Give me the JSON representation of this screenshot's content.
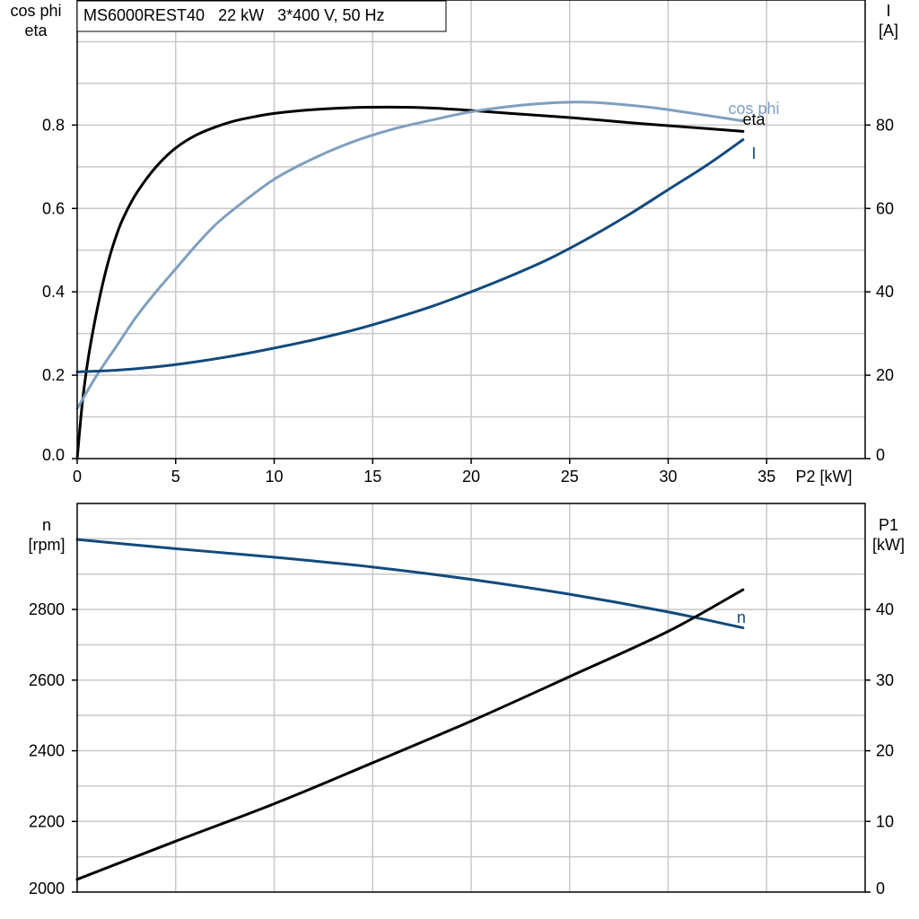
{
  "chart_data": [
    {
      "type": "line",
      "legend_text": "MS6000REST40   22 kW   3*400 V, 50 Hz",
      "xlabel": "P2 [kW]",
      "ylabel_left": [
        "cos phi",
        "eta"
      ],
      "ylabel_right": [
        "I",
        "[A]"
      ],
      "xlim": [
        0,
        40
      ],
      "ylim_left": [
        0,
        1.1
      ],
      "ylim_right": [
        0,
        110
      ],
      "xticks": [
        0,
        5,
        10,
        15,
        20,
        25,
        30,
        35
      ],
      "yticks_left": [
        "0.0",
        "0.2",
        "0.4",
        "0.6",
        "0.8"
      ],
      "yticks_right": [
        "0",
        "20",
        "40",
        "60",
        "80"
      ],
      "grid": true,
      "series": [
        {
          "name": "eta",
          "axis": "left",
          "color": "#000000",
          "x": [
            0,
            0.3,
            0.7,
            1.4,
            2.1,
            2.8,
            3.5,
            4.2,
            5,
            6,
            7,
            8,
            9,
            10,
            12,
            14,
            16,
            18,
            20,
            22,
            25,
            28,
            31,
            33.8
          ],
          "y": [
            0.0,
            0.15,
            0.28,
            0.44,
            0.55,
            0.62,
            0.67,
            0.71,
            0.745,
            0.775,
            0.795,
            0.81,
            0.82,
            0.828,
            0.837,
            0.842,
            0.843,
            0.841,
            0.835,
            0.828,
            0.818,
            0.806,
            0.795,
            0.785
          ]
        },
        {
          "name": "cos phi",
          "axis": "left",
          "color": "#7e9fbf",
          "x": [
            0,
            1,
            2,
            3,
            4,
            5,
            6,
            7,
            8,
            10,
            12,
            14,
            16,
            18,
            20,
            22,
            24,
            25.5,
            27,
            29,
            31,
            33.8
          ],
          "y": [
            0.12,
            0.2,
            0.27,
            0.34,
            0.4,
            0.455,
            0.51,
            0.56,
            0.6,
            0.67,
            0.72,
            0.76,
            0.79,
            0.812,
            0.832,
            0.845,
            0.853,
            0.855,
            0.852,
            0.843,
            0.83,
            0.81
          ]
        },
        {
          "name": "I",
          "axis": "right",
          "color": "#124a7c",
          "x": [
            0,
            2,
            4,
            6,
            8,
            10,
            12,
            14,
            16,
            18,
            20,
            22,
            24,
            26,
            28,
            30,
            32,
            33.8
          ],
          "y": [
            20.8,
            21.2,
            22,
            23.2,
            24.7,
            26.5,
            28.5,
            30.8,
            33.5,
            36.5,
            40,
            43.8,
            48,
            53,
            58.5,
            64.5,
            70.5,
            76.5
          ]
        }
      ]
    },
    {
      "type": "line",
      "ylabel_left": [
        "n",
        "[rpm]"
      ],
      "ylabel_right": [
        "P1",
        "[kW]"
      ],
      "xlim": [
        0,
        40
      ],
      "ylim_left": [
        2000,
        3100
      ],
      "ylim_right": [
        0,
        55
      ],
      "yticks_left": [
        "2000",
        "2200",
        "2400",
        "2600",
        "2800"
      ],
      "yticks_right": [
        "0",
        "10",
        "20",
        "30",
        "40"
      ],
      "grid": true,
      "series": [
        {
          "name": "n",
          "axis": "left",
          "color": "#124a7c",
          "x": [
            0,
            5,
            10,
            15,
            20,
            25,
            30,
            33.8
          ],
          "y": [
            2998,
            2972,
            2948,
            2920,
            2885,
            2843,
            2793,
            2748
          ]
        },
        {
          "name": "P1",
          "axis": "right",
          "color": "#000000",
          "x": [
            0,
            5,
            10,
            15,
            20,
            25,
            30,
            33.8
          ],
          "y": [
            1.8,
            7.2,
            12.5,
            18.3,
            24.2,
            30.5,
            36.9,
            42.8
          ]
        }
      ]
    }
  ]
}
